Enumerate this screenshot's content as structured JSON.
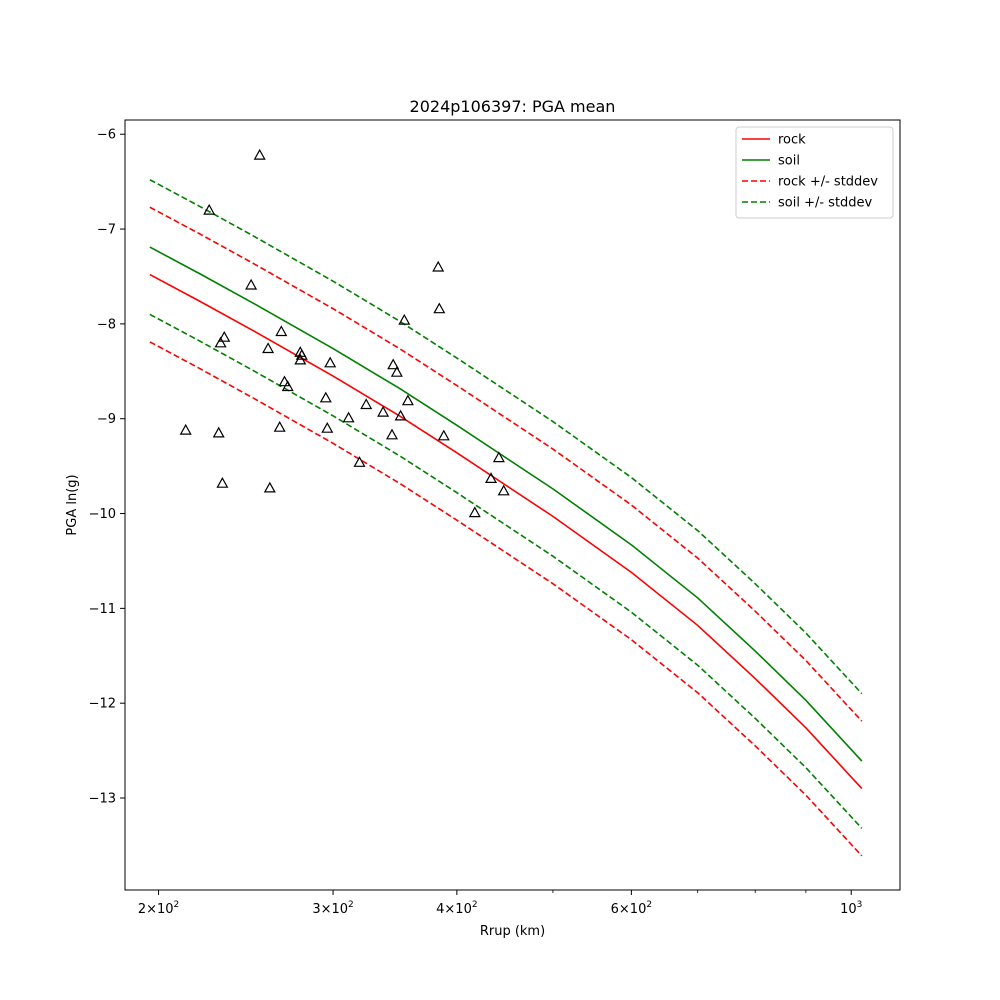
{
  "chart_data": {
    "type": "line",
    "title": "2024p106397: PGA mean",
    "xlabel": "Rrup (km)",
    "ylabel": "PGA ln(g)",
    "xscale": "log",
    "xlim": [
      185,
      1120
    ],
    "ylim": [
      -13.97,
      -5.85
    ],
    "x_ticks": [
      {
        "value": 200,
        "base": "2",
        "exp": "2"
      },
      {
        "value": 300,
        "base": "3",
        "exp": "2"
      },
      {
        "value": 400,
        "base": "4",
        "exp": "2"
      },
      {
        "value": 600,
        "base": "6",
        "exp": "2"
      },
      {
        "value": 1000,
        "base": "10",
        "exp": "3"
      }
    ],
    "x_tick_mult": "×10",
    "x_minor_ticks": [
      500,
      700,
      800,
      900
    ],
    "y_ticks": [
      {
        "value": -6,
        "label": "−6"
      },
      {
        "value": -7,
        "label": "−7"
      },
      {
        "value": -8,
        "label": "−8"
      },
      {
        "value": -9,
        "label": "−9"
      },
      {
        "value": -10,
        "label": "−10"
      },
      {
        "value": -11,
        "label": "−11"
      },
      {
        "value": -12,
        "label": "−12"
      },
      {
        "value": -13,
        "label": "−13"
      }
    ],
    "grid": false,
    "legend_position": "top-right",
    "x": [
      196,
      220,
      250,
      300,
      350,
      400,
      500,
      600,
      700,
      800,
      900,
      1025
    ],
    "series": [
      {
        "name": "rock",
        "color": "#ff0000",
        "dash": false,
        "values": [
          -7.48,
          -7.76,
          -8.08,
          -8.55,
          -8.97,
          -9.36,
          -10.03,
          -10.62,
          -11.18,
          -11.74,
          -12.26,
          -12.9
        ]
      },
      {
        "name": "soil",
        "color": "#008000",
        "dash": false,
        "values": [
          -7.19,
          -7.47,
          -7.79,
          -8.26,
          -8.68,
          -9.07,
          -9.74,
          -10.33,
          -10.89,
          -11.45,
          -11.97,
          -12.61
        ]
      },
      {
        "name": "rock +/- stddev",
        "color": "#ff0000",
        "dash": true,
        "values": [
          -6.77,
          -7.05,
          -7.37,
          -7.84,
          -8.26,
          -8.65,
          -9.32,
          -9.91,
          -10.47,
          -11.03,
          -11.55,
          -12.19
        ]
      },
      {
        "name": "",
        "color": "#ff0000",
        "dash": true,
        "values": [
          -8.19,
          -8.47,
          -8.79,
          -9.26,
          -9.68,
          -10.07,
          -10.74,
          -11.33,
          -11.89,
          -12.45,
          -12.97,
          -13.61
        ]
      },
      {
        "name": "soil +/- stddev",
        "color": "#008000",
        "dash": true,
        "values": [
          -6.48,
          -6.76,
          -7.08,
          -7.55,
          -7.97,
          -8.36,
          -9.03,
          -9.62,
          -10.18,
          -10.74,
          -11.26,
          -11.9
        ]
      },
      {
        "name": "",
        "color": "#008000",
        "dash": true,
        "values": [
          -7.9,
          -8.18,
          -8.5,
          -8.97,
          -9.39,
          -9.78,
          -10.45,
          -11.04,
          -11.6,
          -12.16,
          -12.68,
          -13.32
        ]
      }
    ],
    "observations": {
      "marker": "triangle",
      "points": [
        [
          253,
          -6.22
        ],
        [
          225,
          -6.8
        ],
        [
          248,
          -7.59
        ],
        [
          383,
          -7.4
        ],
        [
          384,
          -7.84
        ],
        [
          354,
          -7.96
        ],
        [
          266,
          -8.08
        ],
        [
          233,
          -8.14
        ],
        [
          231,
          -8.2
        ],
        [
          258,
          -8.26
        ],
        [
          278,
          -8.3
        ],
        [
          279,
          -8.33
        ],
        [
          278,
          -8.38
        ],
        [
          298,
          -8.41
        ],
        [
          345,
          -8.43
        ],
        [
          348,
          -8.51
        ],
        [
          268,
          -8.61
        ],
        [
          270,
          -8.66
        ],
        [
          295,
          -8.78
        ],
        [
          357,
          -8.81
        ],
        [
          324,
          -8.85
        ],
        [
          337,
          -8.93
        ],
        [
          311,
          -8.99
        ],
        [
          351,
          -8.97
        ],
        [
          213,
          -9.12
        ],
        [
          265,
          -9.09
        ],
        [
          296,
          -9.1
        ],
        [
          230,
          -9.15
        ],
        [
          344,
          -9.17
        ],
        [
          388,
          -9.18
        ],
        [
          319,
          -9.46
        ],
        [
          441,
          -9.41
        ],
        [
          433,
          -9.63
        ],
        [
          446,
          -9.76
        ],
        [
          232,
          -9.68
        ],
        [
          259,
          -9.73
        ],
        [
          417,
          -9.99
        ]
      ]
    }
  }
}
